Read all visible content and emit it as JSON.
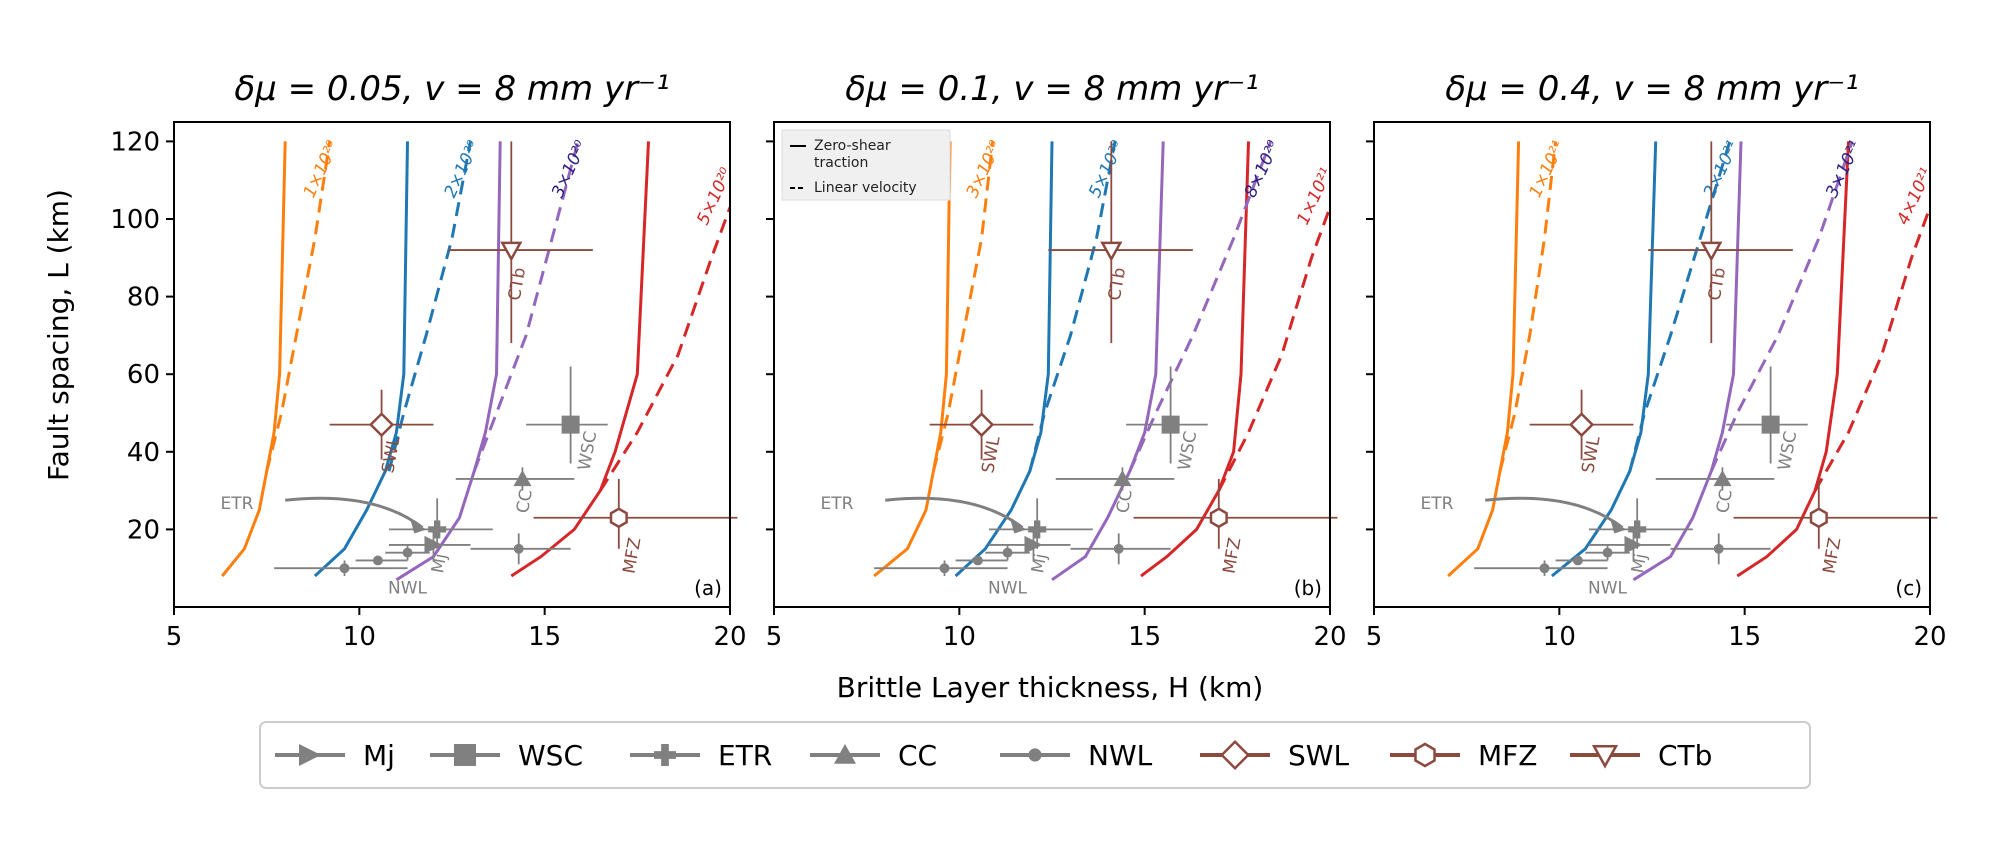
{
  "colors": {
    "gray": "#808080",
    "brown": "#8c4a3f",
    "curves": [
      "#ff7f0e",
      "#1f77b4",
      "#9467bd",
      "#d62728"
    ],
    "curve_label_colors": [
      "#ff7f0e",
      "#1f77b4",
      "#2b2080",
      "#d62728"
    ]
  },
  "common": {
    "xlabel": "Brittle Layer thickness, H (km)",
    "ylabel": "Fault spacing, L (km)",
    "xticks": [
      "5",
      "10",
      "15",
      "20"
    ],
    "yticks": [
      "20",
      "40",
      "60",
      "80",
      "100",
      "120"
    ]
  },
  "legend": {
    "entries": [
      {
        "label": "Mj",
        "marker": "triangle-right",
        "color": "gray"
      },
      {
        "label": "WSC",
        "marker": "square",
        "color": "gray"
      },
      {
        "label": "ETR",
        "marker": "plus",
        "color": "gray"
      },
      {
        "label": "CC",
        "marker": "triangle-up",
        "color": "gray"
      },
      {
        "label": "NWL",
        "marker": "dot",
        "color": "gray"
      },
      {
        "label": "SWL",
        "marker": "diamond-open",
        "color": "brown"
      },
      {
        "label": "MFZ",
        "marker": "hexagon-open",
        "color": "brown"
      },
      {
        "label": "CTb",
        "marker": "triangle-down-open",
        "color": "brown"
      }
    ]
  },
  "inset_legend": {
    "solid": "Zero-shear\ntraction",
    "dashed": "Linear velocity"
  },
  "site_labels": {
    "etr": "ETR",
    "nwl": "NWL",
    "mj": "Mj",
    "swl": "SWL",
    "wsc": "WSC",
    "cc": "CC",
    "ctb": "CTb",
    "mfz": "MFZ"
  },
  "chart_data": [
    {
      "type": "line",
      "panel": "(a)",
      "title": "δμ = 0.05, v = 8 mm yr⁻¹",
      "xlim": [
        5,
        20
      ],
      "ylim": [
        0,
        125
      ],
      "solid_curves": [
        {
          "label": "1×10²⁰",
          "x": [
            6.3,
            6.9,
            7.3,
            7.5,
            7.7,
            7.85,
            8.0
          ],
          "y": [
            8,
            15,
            25,
            35,
            45,
            60,
            120
          ]
        },
        {
          "label": "2×10²⁰",
          "x": [
            8.8,
            9.6,
            10.2,
            10.7,
            11.0,
            11.2,
            11.3
          ],
          "y": [
            8,
            15,
            25,
            35,
            45,
            60,
            120
          ]
        },
        {
          "label": "3×10²⁰",
          "x": [
            11.0,
            12.0,
            12.7,
            13.1,
            13.4,
            13.7,
            13.8
          ],
          "y": [
            7,
            13,
            23,
            35,
            45,
            60,
            120
          ]
        },
        {
          "label": "5×10²⁰",
          "x": [
            14.1,
            14.9,
            15.8,
            16.5,
            16.9,
            17.5,
            17.8
          ],
          "y": [
            8,
            13,
            20,
            30,
            40,
            60,
            120
          ]
        }
      ],
      "dashed_curves": [
        {
          "label": "1×10²⁰",
          "x": [
            7.5,
            7.9,
            8.3,
            8.8,
            9.2
          ],
          "y": [
            35,
            50,
            70,
            95,
            120
          ]
        },
        {
          "label": "2×10²⁰",
          "x": [
            10.8,
            11.2,
            11.8,
            12.5,
            13.0
          ],
          "y": [
            35,
            50,
            70,
            95,
            120
          ]
        },
        {
          "label": "3×10²⁰",
          "x": [
            13.1,
            13.7,
            14.5,
            15.2,
            15.9
          ],
          "y": [
            35,
            50,
            70,
            95,
            120
          ]
        },
        {
          "label": "5×10²⁰",
          "x": [
            16.5,
            17.5,
            18.6,
            19.5,
            20.0
          ],
          "y": [
            30,
            45,
            65,
            90,
            103
          ]
        }
      ],
      "points": [
        {
          "site": "ETR",
          "x": 12.1,
          "y": 20,
          "xerr": [
            1.3,
            1.5
          ],
          "yerr": [
            5,
            8
          ]
        },
        {
          "site": "Mj",
          "x": 12.0,
          "y": 16,
          "xerr": [
            1.2,
            1.0
          ],
          "yerr": [
            4,
            4
          ]
        },
        {
          "site": "WSC",
          "x": 15.7,
          "y": 47,
          "xerr": [
            1.2,
            1.0
          ],
          "yerr": [
            10,
            15
          ]
        },
        {
          "site": "CC",
          "x": 14.4,
          "y": 33,
          "xerr": [
            1.8,
            1.4
          ],
          "yerr": [
            3,
            3
          ]
        },
        {
          "site": "NWL-1",
          "x": 9.6,
          "y": 10,
          "xerr": [
            1.9,
            1.7
          ],
          "yerr": [
            2,
            2
          ]
        },
        {
          "site": "NWL-2",
          "x": 10.5,
          "y": 12,
          "xerr": [
            0.6,
            0.8
          ],
          "yerr": [
            1,
            1
          ]
        },
        {
          "site": "NWL-3",
          "x": 11.3,
          "y": 14,
          "xerr": [
            0.6,
            0.6
          ],
          "yerr": [
            2,
            2
          ]
        },
        {
          "site": "NWL-4",
          "x": 14.3,
          "y": 15,
          "xerr": [
            1.3,
            1.4
          ],
          "yerr": [
            4,
            4
          ]
        },
        {
          "site": "SWL",
          "x": 10.6,
          "y": 47,
          "xerr": [
            1.4,
            1.4
          ],
          "yerr": [
            9,
            9
          ]
        },
        {
          "site": "CTb",
          "x": 14.1,
          "y": 92,
          "xerr": [
            1.7,
            2.2
          ],
          "yerr": [
            24,
            28
          ]
        },
        {
          "site": "MFZ",
          "x": 17.0,
          "y": 23,
          "xerr": [
            2.3,
            3.2
          ],
          "yerr": [
            8,
            10
          ]
        }
      ]
    },
    {
      "type": "line",
      "panel": "(b)",
      "title": "δμ = 0.1, v = 8 mm yr⁻¹",
      "xlim": [
        5,
        20
      ],
      "ylim": [
        0,
        125
      ],
      "solid_curves": [
        {
          "label": "3×10²⁰",
          "x": [
            7.7,
            8.6,
            9.1,
            9.3,
            9.5,
            9.65,
            9.75
          ],
          "y": [
            8,
            15,
            25,
            35,
            45,
            60,
            120
          ]
        },
        {
          "label": "5×10²⁰",
          "x": [
            9.9,
            10.7,
            11.4,
            11.9,
            12.2,
            12.4,
            12.5
          ],
          "y": [
            8,
            15,
            25,
            35,
            45,
            60,
            120
          ]
        },
        {
          "label": "8×10²⁰",
          "x": [
            12.5,
            13.4,
            14.0,
            14.6,
            15.0,
            15.3,
            15.5
          ],
          "y": [
            7,
            13,
            23,
            35,
            45,
            60,
            120
          ]
        },
        {
          "label": "1×10²¹",
          "x": [
            14.9,
            15.6,
            16.4,
            17.0,
            17.4,
            17.6,
            17.8
          ],
          "y": [
            8,
            13,
            20,
            30,
            40,
            60,
            120
          ]
        }
      ],
      "dashed_curves": [
        {
          "label": "3×10²⁰",
          "x": [
            9.3,
            9.7,
            10.1,
            10.6,
            10.9
          ],
          "y": [
            35,
            50,
            70,
            95,
            120
          ]
        },
        {
          "label": "5×10²⁰",
          "x": [
            11.9,
            12.3,
            13.0,
            13.7,
            14.2
          ],
          "y": [
            35,
            50,
            70,
            95,
            120
          ]
        },
        {
          "label": "8×10²⁰",
          "x": [
            14.6,
            15.3,
            16.3,
            17.4,
            18.4
          ],
          "y": [
            35,
            50,
            70,
            95,
            120
          ]
        },
        {
          "label": "1×10²¹",
          "x": [
            17.0,
            17.8,
            18.7,
            19.5,
            20.0
          ],
          "y": [
            30,
            45,
            65,
            90,
            103
          ]
        }
      ],
      "points": [
        {
          "site": "ETR",
          "x": 12.1,
          "y": 20,
          "xerr": [
            1.3,
            1.5
          ],
          "yerr": [
            5,
            8
          ]
        },
        {
          "site": "Mj",
          "x": 12.0,
          "y": 16,
          "xerr": [
            1.2,
            1.0
          ],
          "yerr": [
            4,
            4
          ]
        },
        {
          "site": "WSC",
          "x": 15.7,
          "y": 47,
          "xerr": [
            1.2,
            1.0
          ],
          "yerr": [
            10,
            15
          ]
        },
        {
          "site": "CC",
          "x": 14.4,
          "y": 33,
          "xerr": [
            1.8,
            1.4
          ],
          "yerr": [
            3,
            3
          ]
        },
        {
          "site": "NWL-1",
          "x": 9.6,
          "y": 10,
          "xerr": [
            1.9,
            1.7
          ],
          "yerr": [
            2,
            2
          ]
        },
        {
          "site": "NWL-2",
          "x": 10.5,
          "y": 12,
          "xerr": [
            0.6,
            0.8
          ],
          "yerr": [
            1,
            1
          ]
        },
        {
          "site": "NWL-3",
          "x": 11.3,
          "y": 14,
          "xerr": [
            0.6,
            0.6
          ],
          "yerr": [
            2,
            2
          ]
        },
        {
          "site": "NWL-4",
          "x": 14.3,
          "y": 15,
          "xerr": [
            1.3,
            1.4
          ],
          "yerr": [
            4,
            4
          ]
        },
        {
          "site": "SWL",
          "x": 10.6,
          "y": 47,
          "xerr": [
            1.4,
            1.4
          ],
          "yerr": [
            9,
            9
          ]
        },
        {
          "site": "CTb",
          "x": 14.1,
          "y": 92,
          "xerr": [
            1.7,
            2.2
          ],
          "yerr": [
            24,
            28
          ]
        },
        {
          "site": "MFZ",
          "x": 17.0,
          "y": 23,
          "xerr": [
            2.3,
            3.2
          ],
          "yerr": [
            8,
            10
          ]
        }
      ]
    },
    {
      "type": "line",
      "panel": "(c)",
      "title": "δμ = 0.4, v = 8 mm yr⁻¹",
      "xlim": [
        5,
        20
      ],
      "ylim": [
        0,
        125
      ],
      "solid_curves": [
        {
          "label": "1×10²¹",
          "x": [
            7.0,
            7.8,
            8.2,
            8.4,
            8.6,
            8.75,
            8.9
          ],
          "y": [
            8,
            15,
            25,
            35,
            45,
            60,
            120
          ]
        },
        {
          "label": "2×10²¹",
          "x": [
            9.8,
            10.7,
            11.4,
            11.9,
            12.2,
            12.4,
            12.6
          ],
          "y": [
            8,
            15,
            25,
            35,
            45,
            60,
            120
          ]
        },
        {
          "label": "3×10²¹",
          "x": [
            12.0,
            13.0,
            13.6,
            14.1,
            14.4,
            14.7,
            14.9
          ],
          "y": [
            7,
            13,
            23,
            35,
            45,
            60,
            120
          ]
        },
        {
          "label": "4×10²¹",
          "x": [
            14.8,
            15.6,
            16.4,
            16.9,
            17.2,
            17.5,
            17.8
          ],
          "y": [
            8,
            13,
            20,
            30,
            40,
            60,
            120
          ]
        }
      ],
      "dashed_curves": [
        {
          "label": "1×10²¹",
          "x": [
            8.4,
            8.8,
            9.2,
            9.6,
            9.9
          ],
          "y": [
            35,
            50,
            70,
            95,
            120
          ]
        },
        {
          "label": "2×10²¹",
          "x": [
            11.9,
            12.3,
            13.0,
            13.8,
            14.6
          ],
          "y": [
            35,
            50,
            70,
            95,
            120
          ]
        },
        {
          "label": "3×10²¹",
          "x": [
            14.1,
            14.8,
            15.9,
            17.0,
            17.9
          ],
          "y": [
            35,
            50,
            70,
            95,
            120
          ]
        },
        {
          "label": "4×10²¹",
          "x": [
            16.9,
            17.8,
            18.7,
            19.5,
            20.0
          ],
          "y": [
            30,
            45,
            65,
            90,
            103
          ]
        }
      ],
      "points": [
        {
          "site": "ETR",
          "x": 12.1,
          "y": 20,
          "xerr": [
            1.3,
            1.5
          ],
          "yerr": [
            5,
            8
          ]
        },
        {
          "site": "Mj",
          "x": 12.0,
          "y": 16,
          "xerr": [
            1.2,
            1.0
          ],
          "yerr": [
            4,
            4
          ]
        },
        {
          "site": "WSC",
          "x": 15.7,
          "y": 47,
          "xerr": [
            1.2,
            1.0
          ],
          "yerr": [
            10,
            15
          ]
        },
        {
          "site": "CC",
          "x": 14.4,
          "y": 33,
          "xerr": [
            1.8,
            1.4
          ],
          "yerr": [
            3,
            3
          ]
        },
        {
          "site": "NWL-1",
          "x": 9.6,
          "y": 10,
          "xerr": [
            1.9,
            1.7
          ],
          "yerr": [
            2,
            2
          ]
        },
        {
          "site": "NWL-2",
          "x": 10.5,
          "y": 12,
          "xerr": [
            0.6,
            0.8
          ],
          "yerr": [
            1,
            1
          ]
        },
        {
          "site": "NWL-3",
          "x": 11.3,
          "y": 14,
          "xerr": [
            0.6,
            0.6
          ],
          "yerr": [
            2,
            2
          ]
        },
        {
          "site": "NWL-4",
          "x": 14.3,
          "y": 15,
          "xerr": [
            1.3,
            1.4
          ],
          "yerr": [
            4,
            4
          ]
        },
        {
          "site": "SWL",
          "x": 10.6,
          "y": 47,
          "xerr": [
            1.4,
            1.4
          ],
          "yerr": [
            9,
            9
          ]
        },
        {
          "site": "CTb",
          "x": 14.1,
          "y": 92,
          "xerr": [
            1.7,
            2.2
          ],
          "yerr": [
            24,
            28
          ]
        },
        {
          "site": "MFZ",
          "x": 17.0,
          "y": 23,
          "xerr": [
            2.3,
            3.2
          ],
          "yerr": [
            8,
            10
          ]
        }
      ]
    }
  ]
}
